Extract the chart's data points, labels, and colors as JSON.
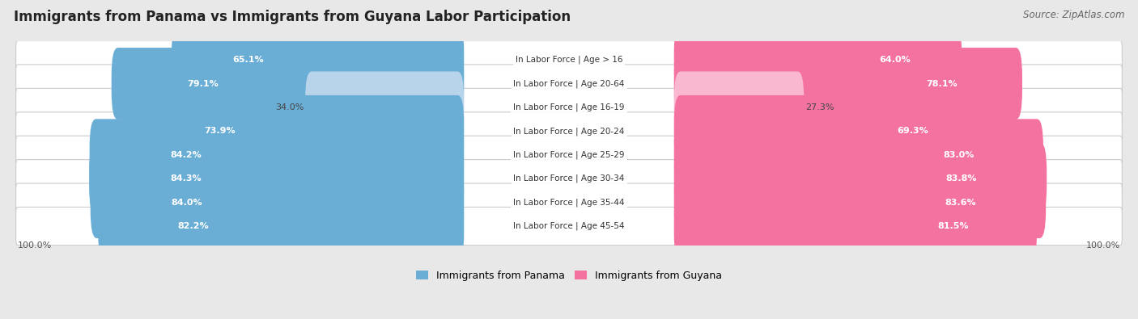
{
  "title": "Immigrants from Panama vs Immigrants from Guyana Labor Participation",
  "source": "Source: ZipAtlas.com",
  "categories": [
    "In Labor Force | Age > 16",
    "In Labor Force | Age 20-64",
    "In Labor Force | Age 16-19",
    "In Labor Force | Age 20-24",
    "In Labor Force | Age 25-29",
    "In Labor Force | Age 30-34",
    "In Labor Force | Age 35-44",
    "In Labor Force | Age 45-54"
  ],
  "panama_values": [
    65.1,
    79.1,
    34.0,
    73.9,
    84.2,
    84.3,
    84.0,
    82.2
  ],
  "guyana_values": [
    64.0,
    78.1,
    27.3,
    69.3,
    83.0,
    83.8,
    83.6,
    81.5
  ],
  "panama_color": "#6aaed6",
  "guyana_color": "#f472a0",
  "panama_color_light": "#b8d4eb",
  "guyana_color_light": "#f9b8cf",
  "bg_color": "#e8e8e8",
  "row_bg_odd": "#f5f5f5",
  "row_bg_even": "#ebebeb",
  "bar_height": 0.62,
  "label_fontsize": 8.0,
  "title_fontsize": 12,
  "legend_fontsize": 9,
  "x_max": 100.0,
  "legend_panama": "Immigrants from Panama",
  "legend_guyana": "Immigrants from Guyana"
}
